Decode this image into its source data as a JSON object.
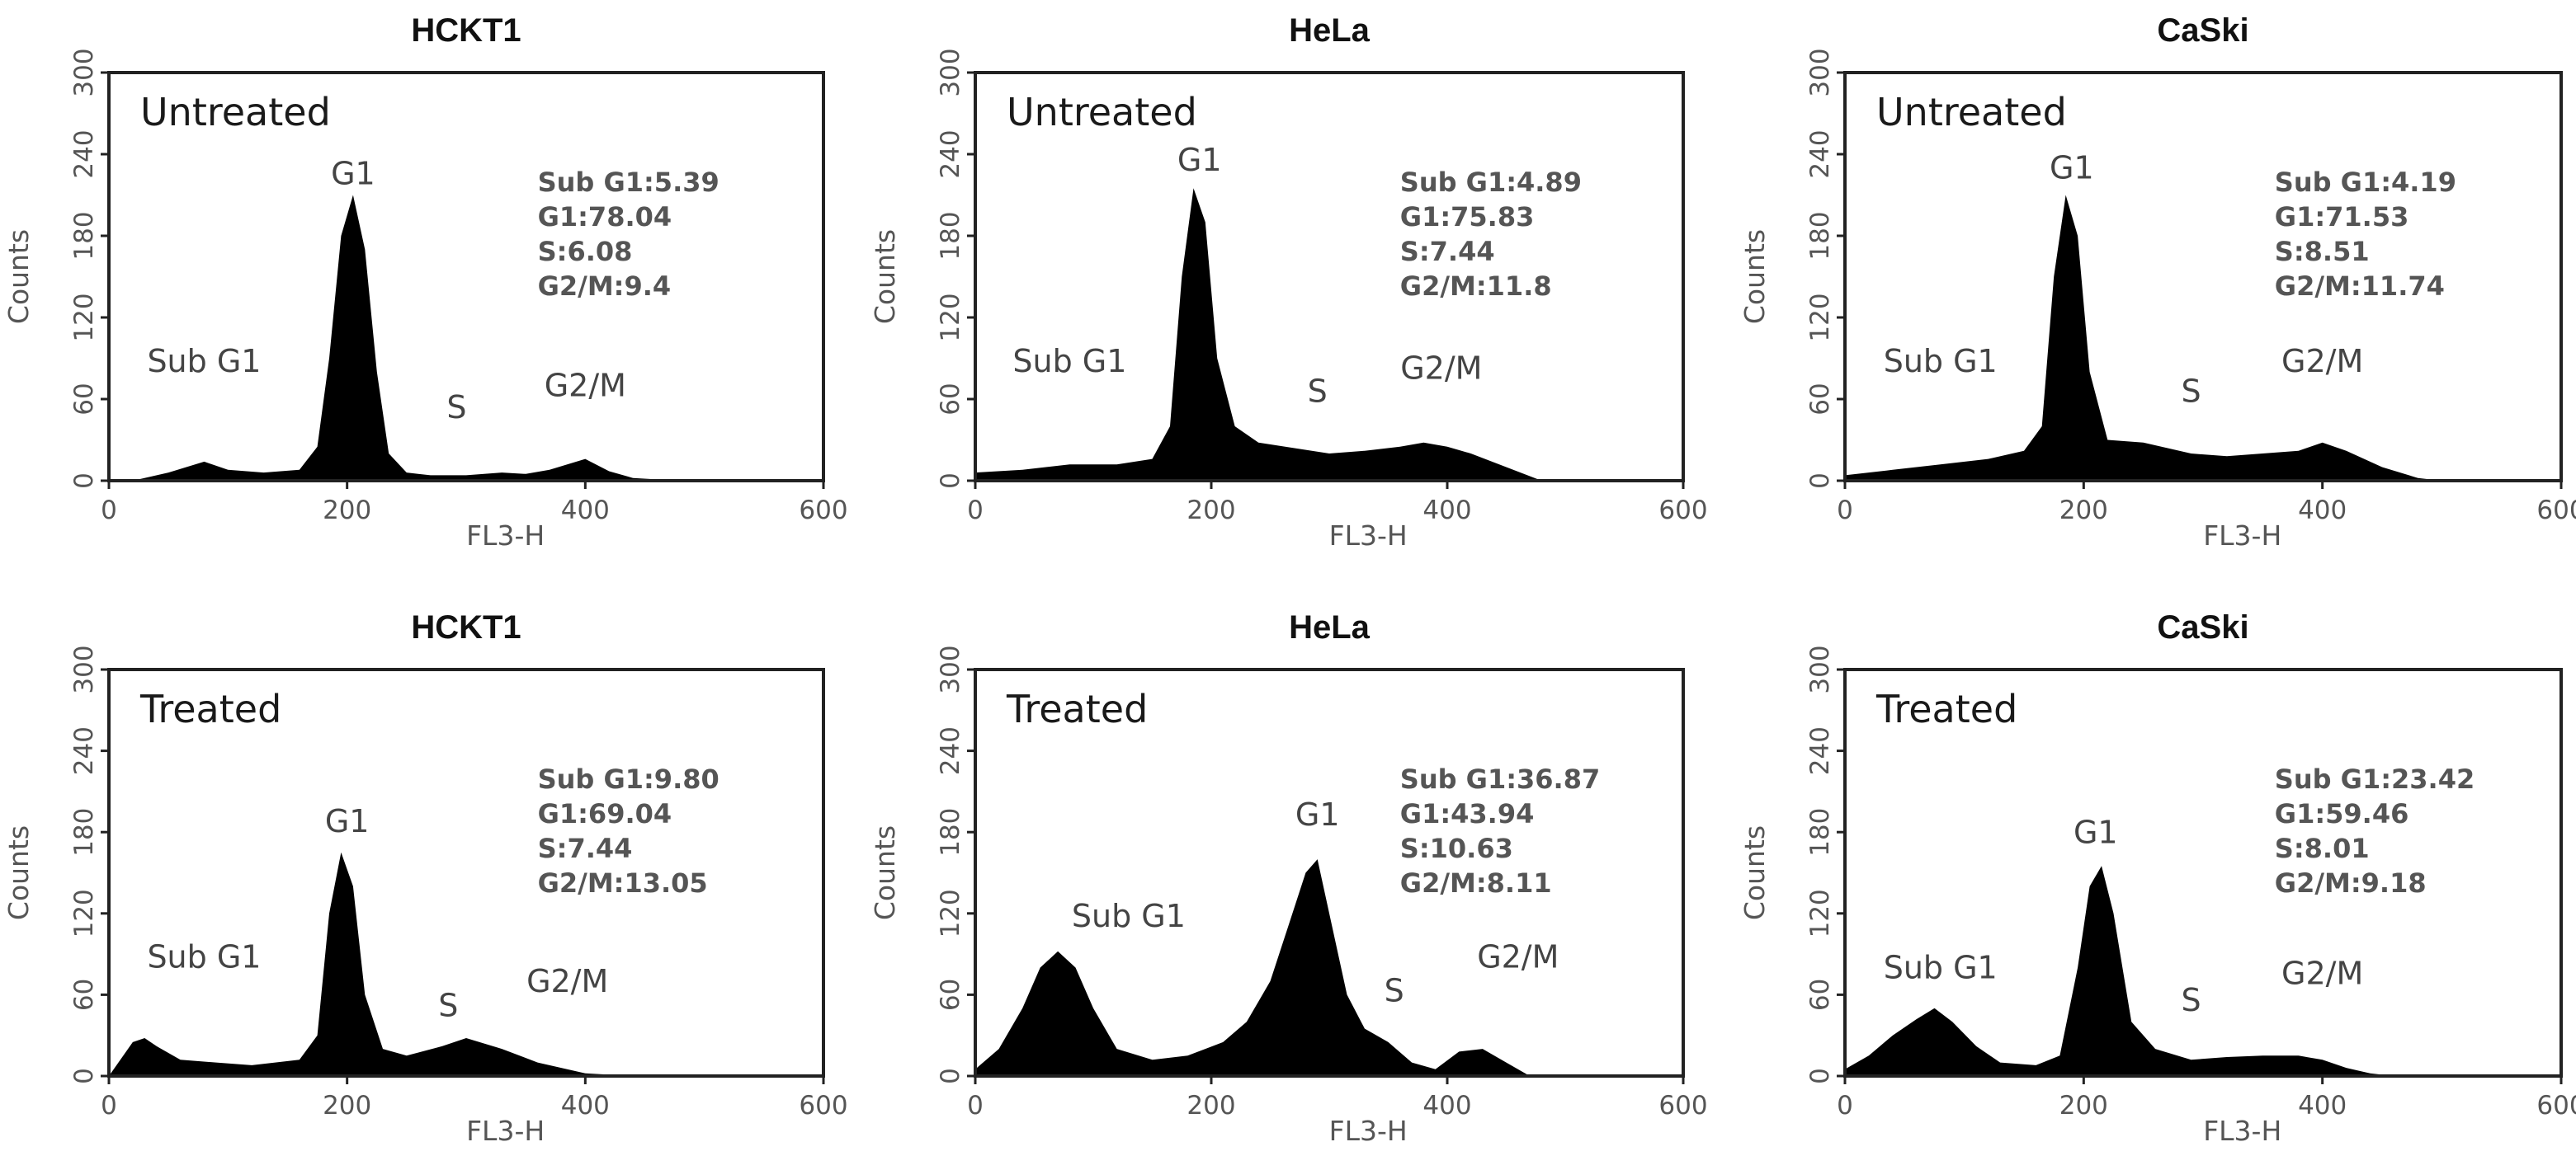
{
  "chart_data": [
    {
      "type": "histogram",
      "title": "HCKT1",
      "condition": "Untreated",
      "xlabel": "FL3-H",
      "ylabel": "Counts",
      "xlim": [
        0,
        600
      ],
      "ylim": [
        0,
        300
      ],
      "xticks": [
        "0",
        "200",
        "400",
        "600"
      ],
      "yticks": [
        "0",
        "60",
        "120",
        "180",
        "240",
        "300"
      ],
      "stats": [
        "Sub G1:5.39",
        "G1:78.04",
        "S:6.08",
        "G2/M:9.4"
      ],
      "peak_labels": [
        {
          "text": "Sub G1",
          "x": 80,
          "y": 80
        },
        {
          "text": "G1",
          "x": 205,
          "y": 218
        },
        {
          "text": "S",
          "x": 292,
          "y": 46
        },
        {
          "text": "G2/M",
          "x": 400,
          "y": 62
        }
      ],
      "histogram": {
        "x": [
          20,
          50,
          80,
          100,
          130,
          160,
          175,
          185,
          195,
          205,
          215,
          225,
          235,
          250,
          270,
          300,
          330,
          350,
          370,
          400,
          420,
          440,
          480
        ],
        "y": [
          0,
          6,
          14,
          8,
          6,
          8,
          25,
          90,
          180,
          210,
          170,
          80,
          20,
          6,
          4,
          4,
          6,
          5,
          8,
          16,
          7,
          2,
          0
        ]
      }
    },
    {
      "type": "histogram",
      "title": "HeLa",
      "condition": "Untreated",
      "xlabel": "FL3-H",
      "ylabel": "Counts",
      "xlim": [
        0,
        600
      ],
      "ylim": [
        0,
        300
      ],
      "xticks": [
        "0",
        "200",
        "400",
        "600"
      ],
      "yticks": [
        "0",
        "60",
        "120",
        "180",
        "240",
        "300"
      ],
      "stats": [
        "Sub G1:4.89",
        "G1:75.83",
        "S:7.44",
        "G2/M:11.8"
      ],
      "peak_labels": [
        {
          "text": "Sub G1",
          "x": 80,
          "y": 80
        },
        {
          "text": "G1",
          "x": 190,
          "y": 228
        },
        {
          "text": "S",
          "x": 290,
          "y": 58
        },
        {
          "text": "G2/M",
          "x": 395,
          "y": 75
        }
      ],
      "histogram": {
        "x": [
          0,
          40,
          80,
          120,
          150,
          165,
          175,
          185,
          195,
          205,
          220,
          240,
          270,
          300,
          330,
          360,
          380,
          400,
          420,
          450,
          480
        ],
        "y": [
          6,
          8,
          12,
          12,
          16,
          40,
          150,
          215,
          190,
          90,
          40,
          28,
          24,
          20,
          22,
          25,
          28,
          25,
          20,
          10,
          0
        ]
      }
    },
    {
      "type": "histogram",
      "title": "CaSki",
      "condition": "Untreated",
      "xlabel": "FL3-H",
      "ylabel": "Counts",
      "xlim": [
        0,
        600
      ],
      "ylim": [
        0,
        300
      ],
      "xticks": [
        "0",
        "200",
        "400",
        "600"
      ],
      "yticks": [
        "0",
        "60",
        "120",
        "180",
        "240",
        "300"
      ],
      "stats": [
        "Sub G1:4.19",
        "G1:71.53",
        "S:8.51",
        "G2/M:11.74"
      ],
      "peak_labels": [
        {
          "text": "Sub G1",
          "x": 80,
          "y": 80
        },
        {
          "text": "G1",
          "x": 190,
          "y": 222
        },
        {
          "text": "S",
          "x": 290,
          "y": 58
        },
        {
          "text": "G2/M",
          "x": 400,
          "y": 80
        }
      ],
      "histogram": {
        "x": [
          0,
          40,
          80,
          120,
          150,
          165,
          175,
          185,
          195,
          205,
          220,
          250,
          290,
          320,
          350,
          380,
          400,
          420,
          450,
          480,
          500
        ],
        "y": [
          4,
          8,
          12,
          16,
          22,
          40,
          150,
          210,
          180,
          80,
          30,
          28,
          20,
          18,
          20,
          22,
          28,
          22,
          10,
          2,
          0
        ]
      }
    },
    {
      "type": "histogram",
      "title": "HCKT1",
      "condition": "Treated",
      "xlabel": "FL3-H",
      "ylabel": "Counts",
      "xlim": [
        0,
        600
      ],
      "ylim": [
        0,
        300
      ],
      "xticks": [
        "0",
        "200",
        "400",
        "600"
      ],
      "yticks": [
        "0",
        "60",
        "120",
        "180",
        "240",
        "300"
      ],
      "stats": [
        "Sub G1:9.80",
        "G1:69.04",
        "S:7.44",
        "G2/M:13.05"
      ],
      "peak_labels": [
        {
          "text": "Sub G1",
          "x": 80,
          "y": 80
        },
        {
          "text": "G1",
          "x": 200,
          "y": 180
        },
        {
          "text": "S",
          "x": 285,
          "y": 44
        },
        {
          "text": "G2/M",
          "x": 385,
          "y": 62
        }
      ],
      "histogram": {
        "x": [
          0,
          20,
          30,
          40,
          60,
          90,
          120,
          160,
          175,
          185,
          195,
          205,
          215,
          230,
          250,
          280,
          300,
          330,
          360,
          400,
          440
        ],
        "y": [
          0,
          25,
          28,
          22,
          12,
          10,
          8,
          12,
          30,
          120,
          165,
          140,
          60,
          20,
          15,
          22,
          28,
          20,
          10,
          2,
          0
        ]
      }
    },
    {
      "type": "histogram",
      "title": "HeLa",
      "condition": "Treated",
      "xlabel": "FL3-H",
      "ylabel": "Counts",
      "xlim": [
        0,
        600
      ],
      "ylim": [
        0,
        300
      ],
      "xticks": [
        "0",
        "200",
        "400",
        "600"
      ],
      "yticks": [
        "0",
        "60",
        "120",
        "180",
        "240",
        "300"
      ],
      "stats": [
        "Sub G1:36.87",
        "G1:43.94",
        "S:10.63",
        "G2/M:8.11"
      ],
      "peak_labels": [
        {
          "text": "Sub G1",
          "x": 130,
          "y": 110
        },
        {
          "text": "G1",
          "x": 290,
          "y": 185
        },
        {
          "text": "S",
          "x": 355,
          "y": 55
        },
        {
          "text": "G2/M",
          "x": 460,
          "y": 80
        }
      ],
      "histogram": {
        "x": [
          0,
          20,
          40,
          55,
          70,
          85,
          100,
          120,
          150,
          180,
          210,
          230,
          250,
          265,
          280,
          290,
          300,
          315,
          330,
          350,
          370,
          390,
          410,
          430,
          450,
          470
        ],
        "y": [
          5,
          20,
          50,
          80,
          92,
          80,
          50,
          20,
          12,
          15,
          25,
          40,
          70,
          110,
          150,
          160,
          120,
          60,
          35,
          25,
          10,
          5,
          18,
          20,
          10,
          0
        ]
      }
    },
    {
      "type": "histogram",
      "title": "CaSki",
      "condition": "Treated",
      "xlabel": "FL3-H",
      "ylabel": "Counts",
      "xlim": [
        0,
        600
      ],
      "ylim": [
        0,
        300
      ],
      "xticks": [
        "0",
        "200",
        "400",
        "600"
      ],
      "yticks": [
        "0",
        "60",
        "120",
        "180",
        "240",
        "300"
      ],
      "stats": [
        "Sub G1:23.42",
        "G1:59.46",
        "S:8.01",
        "G2/M:9.18"
      ],
      "peak_labels": [
        {
          "text": "Sub G1",
          "x": 80,
          "y": 72
        },
        {
          "text": "G1",
          "x": 210,
          "y": 172
        },
        {
          "text": "S",
          "x": 290,
          "y": 48
        },
        {
          "text": "G2/M",
          "x": 400,
          "y": 68
        }
      ],
      "histogram": {
        "x": [
          0,
          20,
          40,
          60,
          75,
          90,
          110,
          130,
          160,
          180,
          195,
          205,
          215,
          225,
          240,
          260,
          290,
          320,
          350,
          380,
          400,
          420,
          440,
          460
        ],
        "y": [
          5,
          15,
          30,
          42,
          50,
          40,
          22,
          10,
          8,
          15,
          80,
          140,
          155,
          120,
          40,
          20,
          12,
          14,
          15,
          15,
          12,
          6,
          2,
          0
        ]
      }
    }
  ]
}
